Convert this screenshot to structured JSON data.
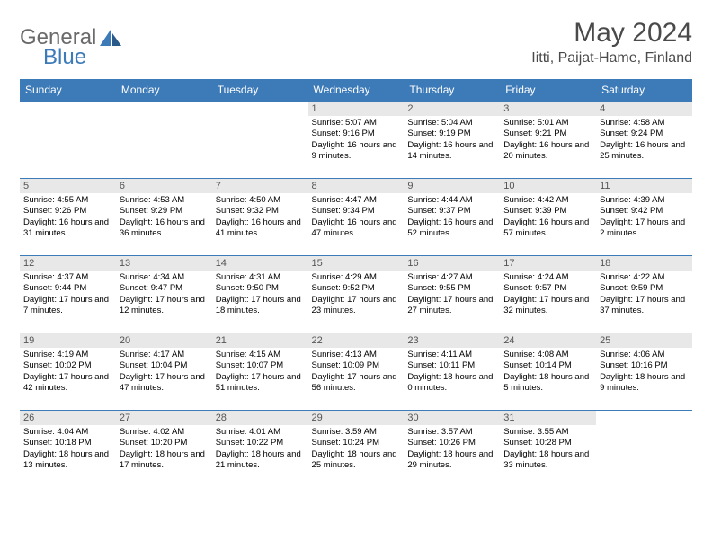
{
  "logo": {
    "word1": "General",
    "word2": "Blue"
  },
  "title": "May 2024",
  "location": "Iitti, Paijat-Hame, Finland",
  "colors": {
    "header_bg": "#3d7ab8",
    "header_text": "#ffffff",
    "daynum_bg": "#e8e8e8",
    "border": "#3d7ab8",
    "logo_gray": "#6a6a6a",
    "logo_blue": "#3d7ab8"
  },
  "weekdays": [
    "Sunday",
    "Monday",
    "Tuesday",
    "Wednesday",
    "Thursday",
    "Friday",
    "Saturday"
  ],
  "weeks": [
    [
      null,
      null,
      null,
      {
        "n": "1",
        "sr": "5:07 AM",
        "ss": "9:16 PM",
        "dl": "16 hours and 9 minutes."
      },
      {
        "n": "2",
        "sr": "5:04 AM",
        "ss": "9:19 PM",
        "dl": "16 hours and 14 minutes."
      },
      {
        "n": "3",
        "sr": "5:01 AM",
        "ss": "9:21 PM",
        "dl": "16 hours and 20 minutes."
      },
      {
        "n": "4",
        "sr": "4:58 AM",
        "ss": "9:24 PM",
        "dl": "16 hours and 25 minutes."
      }
    ],
    [
      {
        "n": "5",
        "sr": "4:55 AM",
        "ss": "9:26 PM",
        "dl": "16 hours and 31 minutes."
      },
      {
        "n": "6",
        "sr": "4:53 AM",
        "ss": "9:29 PM",
        "dl": "16 hours and 36 minutes."
      },
      {
        "n": "7",
        "sr": "4:50 AM",
        "ss": "9:32 PM",
        "dl": "16 hours and 41 minutes."
      },
      {
        "n": "8",
        "sr": "4:47 AM",
        "ss": "9:34 PM",
        "dl": "16 hours and 47 minutes."
      },
      {
        "n": "9",
        "sr": "4:44 AM",
        "ss": "9:37 PM",
        "dl": "16 hours and 52 minutes."
      },
      {
        "n": "10",
        "sr": "4:42 AM",
        "ss": "9:39 PM",
        "dl": "16 hours and 57 minutes."
      },
      {
        "n": "11",
        "sr": "4:39 AM",
        "ss": "9:42 PM",
        "dl": "17 hours and 2 minutes."
      }
    ],
    [
      {
        "n": "12",
        "sr": "4:37 AM",
        "ss": "9:44 PM",
        "dl": "17 hours and 7 minutes."
      },
      {
        "n": "13",
        "sr": "4:34 AM",
        "ss": "9:47 PM",
        "dl": "17 hours and 12 minutes."
      },
      {
        "n": "14",
        "sr": "4:31 AM",
        "ss": "9:50 PM",
        "dl": "17 hours and 18 minutes."
      },
      {
        "n": "15",
        "sr": "4:29 AM",
        "ss": "9:52 PM",
        "dl": "17 hours and 23 minutes."
      },
      {
        "n": "16",
        "sr": "4:27 AM",
        "ss": "9:55 PM",
        "dl": "17 hours and 27 minutes."
      },
      {
        "n": "17",
        "sr": "4:24 AM",
        "ss": "9:57 PM",
        "dl": "17 hours and 32 minutes."
      },
      {
        "n": "18",
        "sr": "4:22 AM",
        "ss": "9:59 PM",
        "dl": "17 hours and 37 minutes."
      }
    ],
    [
      {
        "n": "19",
        "sr": "4:19 AM",
        "ss": "10:02 PM",
        "dl": "17 hours and 42 minutes."
      },
      {
        "n": "20",
        "sr": "4:17 AM",
        "ss": "10:04 PM",
        "dl": "17 hours and 47 minutes."
      },
      {
        "n": "21",
        "sr": "4:15 AM",
        "ss": "10:07 PM",
        "dl": "17 hours and 51 minutes."
      },
      {
        "n": "22",
        "sr": "4:13 AM",
        "ss": "10:09 PM",
        "dl": "17 hours and 56 minutes."
      },
      {
        "n": "23",
        "sr": "4:11 AM",
        "ss": "10:11 PM",
        "dl": "18 hours and 0 minutes."
      },
      {
        "n": "24",
        "sr": "4:08 AM",
        "ss": "10:14 PM",
        "dl": "18 hours and 5 minutes."
      },
      {
        "n": "25",
        "sr": "4:06 AM",
        "ss": "10:16 PM",
        "dl": "18 hours and 9 minutes."
      }
    ],
    [
      {
        "n": "26",
        "sr": "4:04 AM",
        "ss": "10:18 PM",
        "dl": "18 hours and 13 minutes."
      },
      {
        "n": "27",
        "sr": "4:02 AM",
        "ss": "10:20 PM",
        "dl": "18 hours and 17 minutes."
      },
      {
        "n": "28",
        "sr": "4:01 AM",
        "ss": "10:22 PM",
        "dl": "18 hours and 21 minutes."
      },
      {
        "n": "29",
        "sr": "3:59 AM",
        "ss": "10:24 PM",
        "dl": "18 hours and 25 minutes."
      },
      {
        "n": "30",
        "sr": "3:57 AM",
        "ss": "10:26 PM",
        "dl": "18 hours and 29 minutes."
      },
      {
        "n": "31",
        "sr": "3:55 AM",
        "ss": "10:28 PM",
        "dl": "18 hours and 33 minutes."
      },
      null
    ]
  ],
  "labels": {
    "sunrise": "Sunrise:",
    "sunset": "Sunset:",
    "daylight": "Daylight:"
  }
}
